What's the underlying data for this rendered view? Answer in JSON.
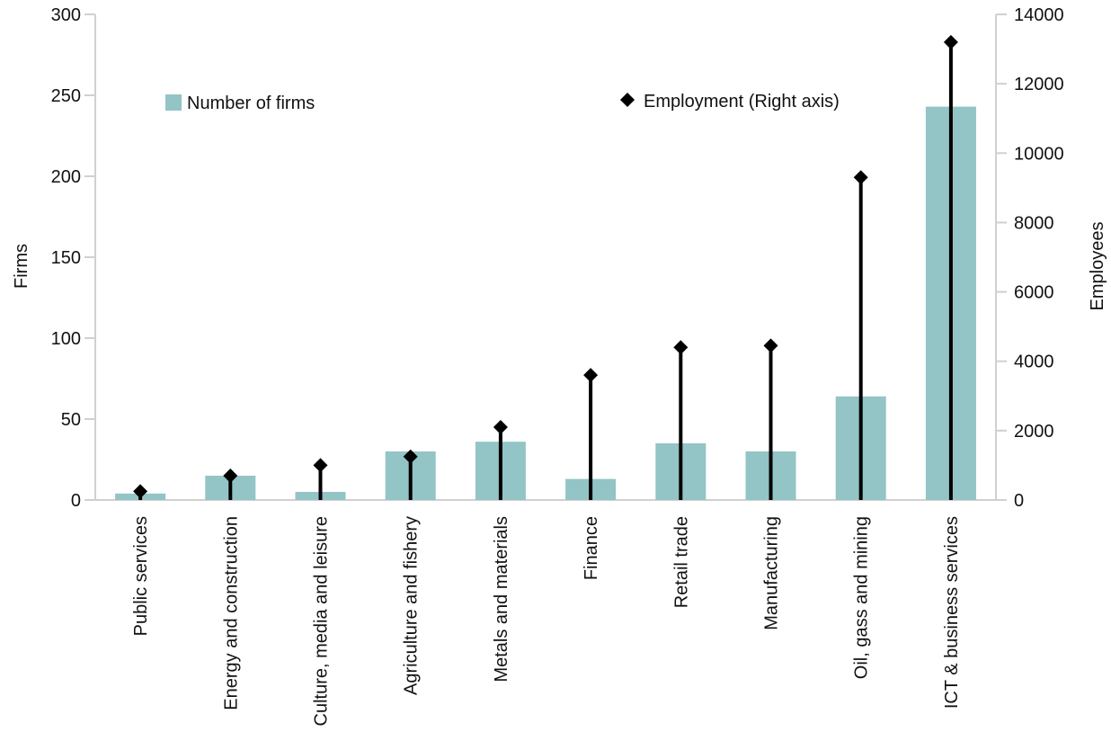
{
  "colors": {
    "bar": "#93c4c6",
    "marker": "#000000",
    "axis": "#d0d0d0"
  },
  "chart_data": {
    "type": "bar",
    "categories": [
      "Public services",
      "Energy and construction",
      "Culture, media and leisure",
      "Agriculture and fishery",
      "Metals and materials",
      "Finance",
      "Retail trade",
      "Manufacturing",
      "Oil, gass and mining",
      "ICT & business services"
    ],
    "series": [
      {
        "name": "Number of firms",
        "kind": "bar",
        "axis": "left",
        "values": [
          4,
          15,
          5,
          30,
          36,
          13,
          35,
          30,
          64,
          243
        ]
      },
      {
        "name": "Employment (Right axis)",
        "kind": "lollipop",
        "axis": "right",
        "values": [
          250,
          700,
          1000,
          1250,
          2100,
          3600,
          4400,
          4450,
          9300,
          13200
        ]
      }
    ],
    "ylabel_left": "Firms",
    "ylabel_right": "Employees",
    "ylim_left": [
      0,
      300
    ],
    "ylim_right": [
      0,
      14000
    ],
    "yticks_left": [
      "0",
      "50",
      "100",
      "150",
      "200",
      "250",
      "300"
    ],
    "yticks_right": [
      "0",
      "2000",
      "4000",
      "6000",
      "8000",
      "10000",
      "12000",
      "14000"
    ],
    "legend_position": "top"
  }
}
